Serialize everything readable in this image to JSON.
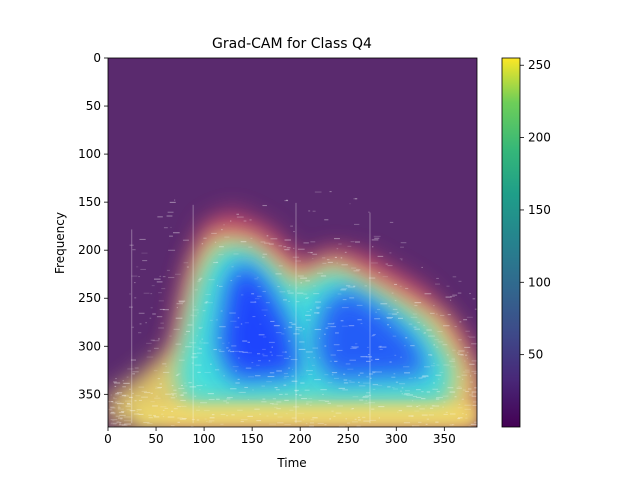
{
  "chart_data": {
    "type": "heatmap",
    "title": "Grad-CAM for Class Q4",
    "xlabel": "Time",
    "ylabel": "Frequency",
    "xlim": [
      0,
      384
    ],
    "ylim": [
      384,
      0
    ],
    "x_ticks": [
      "0",
      "50",
      "100",
      "150",
      "200",
      "250",
      "300",
      "350"
    ],
    "y_ticks": [
      "0",
      "50",
      "100",
      "150",
      "200",
      "250",
      "300",
      "350"
    ],
    "colorbar": {
      "range": [
        0,
        255
      ],
      "ticks": [
        "50",
        "100",
        "150",
        "200",
        "250"
      ],
      "colormap": "viridis"
    },
    "colors": {
      "background_low": "#5a2a6e",
      "heat_low": "#1f3cff",
      "heat_mid": "#33e0e8",
      "heat_high": "#f7e46a",
      "heat_edge": "#e8506a"
    }
  }
}
